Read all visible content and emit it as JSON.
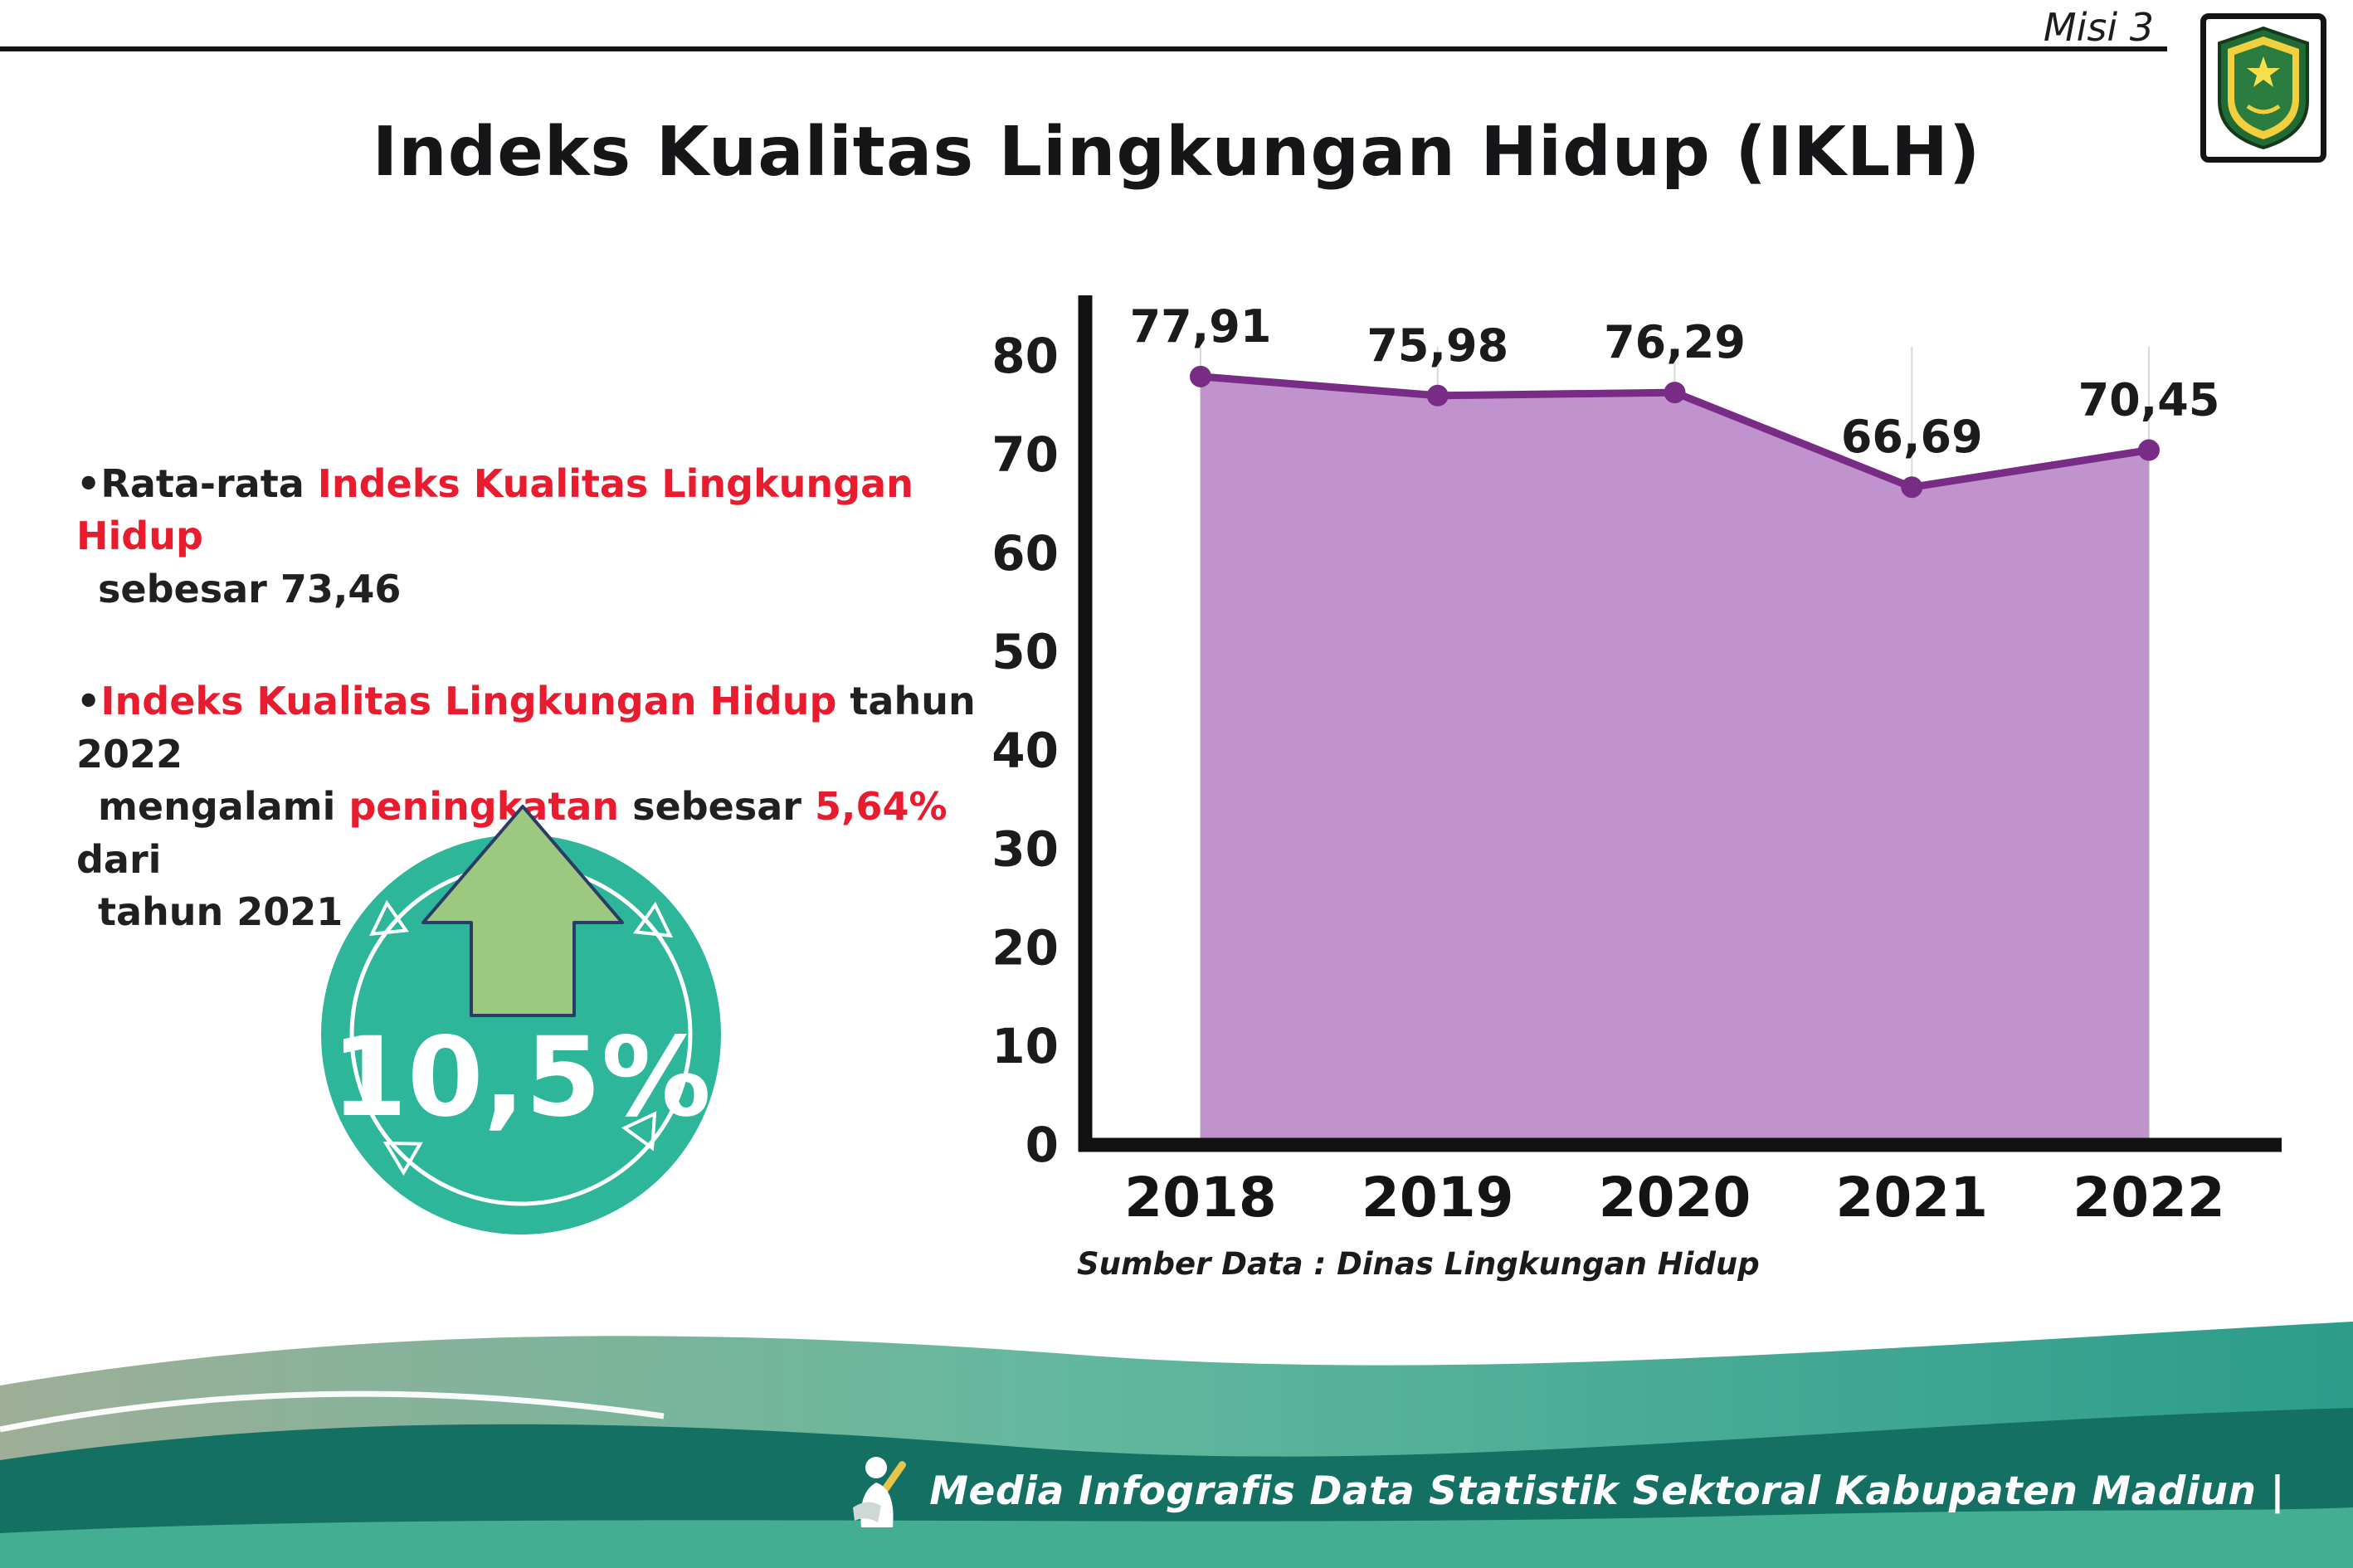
{
  "header": {
    "misi_label": "Misi 3",
    "title": "Indeks Kualitas Lingkungan Hidup (IKLH)"
  },
  "bullets": {
    "b1": {
      "bullet": "•",
      "p1": "Rata-rata ",
      "p2": "Indeks Kualitas Lingkungan Hidup",
      "p3": "sebesar 73,46"
    },
    "b2": {
      "bullet": "•",
      "p1": "Indeks Kualitas Lingkungan Hidup",
      "p2": " tahun 2022",
      "p3": "mengalami ",
      "p4": "peningkatan",
      "p5": " sebesar ",
      "p6": "5,64%",
      "p7": " dari",
      "p8": "tahun 2021"
    }
  },
  "badge": {
    "value": "10,5%",
    "circle_color": "#2db69a",
    "arrow_color": "#9dc87f"
  },
  "chart_data": {
    "type": "area",
    "title": "",
    "categories": [
      "2018",
      "2019",
      "2020",
      "2021",
      "2022"
    ],
    "values": [
      77.91,
      75.98,
      76.29,
      66.69,
      70.45
    ],
    "point_labels": [
      "77,91",
      "75,98",
      "76,29",
      "66,69",
      "70,45"
    ],
    "ylim": [
      0,
      80
    ],
    "yticks": [
      0,
      10,
      20,
      30,
      40,
      50,
      60,
      70,
      80
    ],
    "grid": "vertical-faint",
    "legend": "none",
    "line_color": "#782c85",
    "fill_color": "#c193cd",
    "source": "Sumber Data : Dinas Lingkungan Hidup"
  },
  "footer": {
    "text": "Media Infografis Data Statistik Sektoral Kabupaten Madiun |"
  },
  "colors": {
    "red_accent": "#e81c2e",
    "footer_dark_teal": "#157064",
    "footer_light_teal": "#44ae93",
    "footer_sage": "#9eae97"
  }
}
